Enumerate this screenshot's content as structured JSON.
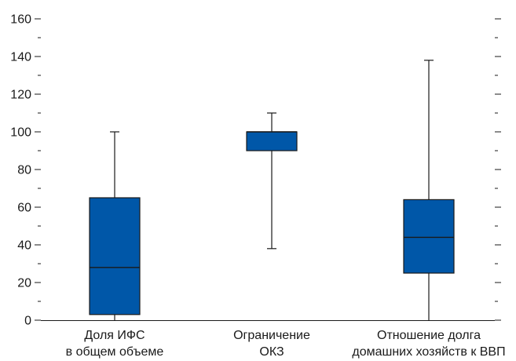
{
  "chart_data": {
    "type": "box",
    "ylim": [
      0,
      160
    ],
    "y_major_ticks": [
      0,
      20,
      40,
      60,
      80,
      100,
      120,
      140,
      160
    ],
    "y_minor_ticks": [
      10,
      30,
      50,
      70,
      90,
      110,
      130,
      150
    ],
    "grid": false,
    "box_color": "#0057a8",
    "line_color": "#1a1a1a",
    "categories": [
      [
        "Доля ИФС",
        "в общем объеме"
      ],
      [
        "Ограничение",
        "ОКЗ"
      ],
      [
        "Отношение долга",
        "домашних хозяйств к ВВП"
      ]
    ],
    "boxes": [
      {
        "min": 0,
        "q1": 3,
        "median": 28,
        "q3": 65,
        "max": 100
      },
      {
        "min": 38,
        "q1": 90,
        "median": 100,
        "q3": 100,
        "max": 110
      },
      {
        "min": 0,
        "q1": 25,
        "median": 44,
        "q3": 64,
        "max": 138
      }
    ]
  }
}
